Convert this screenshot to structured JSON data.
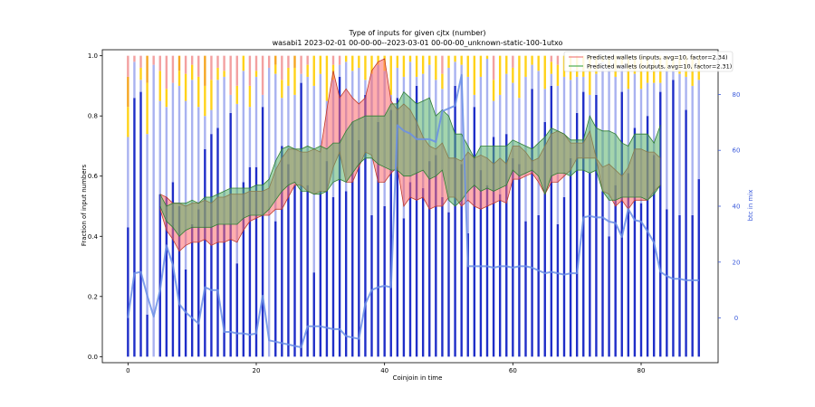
{
  "chart_data": {
    "type": "bar",
    "title": "Type of inputs for given cjtx (number)",
    "subtitle": "wasabi1 2023-02-01 00-00-00--2023-03-01 00-00-00_unknown-static-100-1utxo",
    "xlabel": "Coinjoin in time",
    "ylabel": "Fraction of input numbers",
    "ylabel_right": "btc in mix",
    "xlim": [
      -4,
      92
    ],
    "ylim": [
      -0.02,
      1.02
    ],
    "ylim_right": [
      -16,
      96
    ],
    "xticks": [
      0,
      20,
      40,
      60,
      80
    ],
    "xtick_labels": [
      "0",
      "20",
      "40",
      "60",
      "80"
    ],
    "yticks": [
      0.0,
      0.2,
      0.4,
      0.6,
      0.8,
      1.0
    ],
    "ytick_labels": [
      "0.0",
      "0.2",
      "0.4",
      "0.6",
      "0.8",
      "1.0"
    ],
    "yticks_right": [
      0,
      20,
      40,
      60,
      80
    ],
    "ytick_labels_right": [
      "0",
      "20",
      "40",
      "60",
      "80"
    ],
    "legend_position": "top-right",
    "legend": [
      {
        "label": "Predicted wallets (inputs, avg=10, factor=2.34)",
        "color": "#f08080"
      },
      {
        "label": "Predicted wallets (outputs, avg=10, factor=2.31)",
        "color": "#4caf50"
      }
    ],
    "colors": {
      "fresh": "#1f2ec8",
      "remix": "#a9b2f0",
      "yellow": "#ffd21a",
      "orange": "#f5a623",
      "pink": "#f3a0a0",
      "brown": "#a0642a",
      "btc_line": "#6b8fe6",
      "inputs_fill": "#ff6b6b",
      "inputs_line": "#c0392b",
      "outputs_fill": "#59b36a",
      "outputs_line": "#2e7d32"
    },
    "x": [
      0,
      1,
      2,
      3,
      4,
      5,
      6,
      7,
      8,
      9,
      10,
      11,
      12,
      13,
      14,
      15,
      16,
      17,
      18,
      19,
      20,
      21,
      22,
      23,
      24,
      25,
      26,
      27,
      28,
      29,
      30,
      31,
      32,
      33,
      34,
      35,
      36,
      37,
      38,
      39,
      40,
      41,
      42,
      43,
      44,
      45,
      46,
      47,
      48,
      49,
      50,
      51,
      52,
      53,
      54,
      55,
      56,
      57,
      58,
      59,
      60,
      61,
      62,
      63,
      64,
      65,
      66,
      67,
      68,
      69,
      70,
      71,
      72,
      73,
      74,
      75,
      76,
      77,
      78,
      79,
      80,
      81,
      82,
      83,
      84,
      85,
      86,
      87,
      88,
      89
    ],
    "series": [
      {
        "kind": "bar",
        "fresh_fraction": [
          0.43,
          0.86,
          0.88,
          0.14,
          0.0,
          0.54,
          0.53,
          0.58,
          0.5,
          0.29,
          0.44,
          0.49,
          0.69,
          0.74,
          0.76,
          0.44,
          0.81,
          0.31,
          0.58,
          0.63,
          0.63,
          0.83,
          0.0,
          0.45,
          0.7,
          0.64,
          0.57,
          0.91,
          0.57,
          0.28,
          0.55,
          0.65,
          0.53,
          0.93,
          0.55,
          0.78,
          0.72,
          0.87,
          0.47,
          0.78,
          0.5,
          0.82,
          0.86,
          0.46,
          0.58,
          0.9,
          0.56,
          0.65,
          0.67,
          0.53,
          0.48,
          0.9,
          0.64,
          0.41,
          0.83,
          0.62,
          0.57,
          0.73,
          0.54,
          0.74,
          0.66,
          0.64,
          0.45,
          0.89,
          0.47,
          0.78,
          0.9,
          0.44,
          0.53,
          0.66,
          0.81,
          0.88,
          0.61,
          0.87,
          0.55,
          0.4,
          0.57,
          0.88,
          0.61,
          0.76,
          0.51,
          0.8,
          0.67,
          0.88,
          0.49,
          0.92,
          0.47,
          0.82,
          0.47,
          0.59
        ],
        "remix_fraction": [
          0.3,
          0.12,
          0.04,
          0.6,
          0.97,
          0.31,
          0.3,
          0.33,
          0.4,
          0.56,
          0.48,
          0.34,
          0.11,
          0.08,
          0.16,
          0.49,
          0.06,
          0.53,
          0.37,
          0.2,
          0.3,
          0.04,
          0.96,
          0.49,
          0.16,
          0.26,
          0.3,
          0.03,
          0.36,
          0.62,
          0.39,
          0.2,
          0.39,
          0.04,
          0.43,
          0.17,
          0.24,
          0.05,
          0.47,
          0.19,
          0.45,
          0.05,
          0.1,
          0.47,
          0.4,
          0.03,
          0.38,
          0.32,
          0.25,
          0.36,
          0.48,
          0.08,
          0.33,
          0.52,
          0.04,
          0.31,
          0.42,
          0.12,
          0.33,
          0.2,
          0.25,
          0.22,
          0.48,
          0.08,
          0.48,
          0.11,
          0.04,
          0.46,
          0.4,
          0.26,
          0.12,
          0.05,
          0.26,
          0.07,
          0.43,
          0.56,
          0.36,
          0.09,
          0.28,
          0.18,
          0.38,
          0.11,
          0.24,
          0.03,
          0.46,
          0.03,
          0.47,
          0.11,
          0.43,
          0.33
        ],
        "yellow_fraction": [
          0.1,
          0.0,
          0.04,
          0.17,
          0.0,
          0.1,
          0.06,
          0.0,
          0.05,
          0.09,
          0.05,
          0.1,
          0.1,
          0.1,
          0.04,
          0.02,
          0.0,
          0.06,
          0.05,
          0.07,
          0.02,
          0.0,
          0.0,
          0.03,
          0.06,
          0.06,
          0.09,
          0.0,
          0.04,
          0.1,
          0.06,
          0.15,
          0.05,
          0.0,
          0.02,
          0.05,
          0.04,
          0.08,
          0.06,
          0.03,
          0.05,
          0.13,
          0.04,
          0.07,
          0.02,
          0.07,
          0.06,
          0.03,
          0.08,
          0.05,
          0.04,
          0.02,
          0.03,
          0.07,
          0.13,
          0.07,
          0.01,
          0.07,
          0.13,
          0.06,
          0.05,
          0.14,
          0.07,
          0.03,
          0.05,
          0.11,
          0.04,
          0.07,
          0.07,
          0.08,
          0.07,
          0.07,
          0.13,
          0.06,
          0.02,
          0.04,
          0.07,
          0.03,
          0.11,
          0.06,
          0.11,
          0.09,
          0.09,
          0.09,
          0.05,
          0.05,
          0.06,
          0.07,
          0.1,
          0.08
        ],
        "orange_fraction": [
          0.1,
          0.0,
          0.0,
          0.09,
          0.0,
          0.0,
          0.0,
          0.0,
          0.05,
          0.0,
          0.0,
          0.0,
          0.1,
          0.0,
          0.0,
          0.0,
          0.0,
          0.0,
          0.0,
          0.0,
          0.0,
          0.0,
          0.0,
          0.03,
          0.0,
          0.0,
          0.04,
          0.0,
          0.0,
          0.0,
          0.0,
          0.0,
          0.0,
          0.0,
          0.0,
          0.0,
          0.0,
          0.0,
          0.0,
          0.0,
          0.0,
          0.0,
          0.0,
          0.0,
          0.0,
          0.0,
          0.0,
          0.0,
          0.0,
          0.0,
          0.0,
          0.0,
          0.0,
          0.0,
          0.0,
          0.0,
          0.0,
          0.0,
          0.0,
          0.0,
          0.0,
          0.0,
          0.0,
          0.0,
          0.0,
          0.0,
          0.0,
          0.0,
          0.0,
          0.0,
          0.0,
          0.0,
          0.0,
          0.0,
          0.0,
          0.0,
          0.0,
          0.0,
          0.0,
          0.0,
          0.0,
          0.0,
          0.0,
          0.0,
          0.0,
          0.0,
          0.0,
          0.0,
          0.0,
          0.0
        ],
        "pink_fraction": [
          0.07,
          0.02,
          0.04,
          0.0,
          0.03,
          0.05,
          0.11,
          0.09,
          0.0,
          0.06,
          0.03,
          0.07,
          0.0,
          0.08,
          0.04,
          0.05,
          0.13,
          0.1,
          0.0,
          0.1,
          0.05,
          0.13,
          0.04,
          0.0,
          0.08,
          0.04,
          0.0,
          0.06,
          0.03,
          0.0,
          0.0,
          0.0,
          0.03,
          0.03,
          0.0,
          0.0,
          0.0,
          0.0,
          0.0,
          0.0,
          0.0,
          0.0,
          0.0,
          0.0,
          0.0,
          0.0,
          0.0,
          0.0,
          0.0,
          0.06,
          0.0,
          0.0,
          0.0,
          0.0,
          0.0,
          0.0,
          0.0,
          0.08,
          0.0,
          0.0,
          0.04,
          0.0,
          0.0,
          0.0,
          0.0,
          0.0,
          0.02,
          0.03,
          0.0,
          0.0,
          0.0,
          0.0,
          0.0,
          0.0,
          0.0,
          0.0,
          0.0,
          0.0,
          0.0,
          0.0,
          0.0,
          0.0,
          0.0,
          0.0,
          0.0,
          0.0,
          0.0,
          0.0,
          0.0,
          0.0
        ],
        "brown_fraction": [
          0.0,
          0.0,
          0.0,
          0.0,
          0.0,
          0.0,
          0.0,
          0.0,
          0.0,
          0.0,
          0.0,
          0.0,
          0.0,
          0.0,
          0.0,
          0.0,
          0.0,
          0.0,
          0.0,
          0.0,
          0.0,
          0.0,
          0.0,
          0.0,
          0.0,
          0.0,
          0.0,
          0.0,
          0.0,
          0.0,
          0.0,
          0.0,
          0.0,
          0.0,
          0.0,
          0.0,
          0.0,
          0.0,
          0.0,
          0.0,
          0.0,
          0.0,
          0.0,
          0.0,
          0.0,
          0.0,
          0.0,
          0.0,
          0.0,
          0.0,
          0.0,
          0.0,
          0.0,
          0.0,
          0.0,
          0.0,
          0.0,
          0.0,
          0.0,
          0.0,
          0.0,
          0.0,
          0.0,
          0.0,
          0.0,
          0.0,
          0.0,
          0.0,
          0.0,
          0.0,
          0.0,
          0.0,
          0.0,
          0.0,
          0.0,
          0.0,
          0.0,
          0.0,
          0.0,
          0.0,
          0.0,
          0.0,
          0.0,
          0.0,
          0.0,
          0.0,
          0.0,
          0.0,
          0.0,
          0.0
        ]
      },
      {
        "kind": "line",
        "axis": "right",
        "values": [
          0.0,
          16.0,
          16.5,
          8.0,
          0.5,
          10.0,
          26.0,
          19.0,
          5.0,
          2.0,
          0.0,
          -2.0,
          11.0,
          10.0,
          10.0,
          -5.0,
          -5.0,
          -5.5,
          -5.5,
          -6.0,
          -5.5,
          8.0,
          -8.0,
          -8.5,
          -9.0,
          -9.5,
          -10.0,
          -10.5,
          -3.0,
          -3.0,
          -3.0,
          -3.5,
          -4.0,
          -4.0,
          -6.5,
          -7.0,
          -7.5,
          5.0,
          10.0,
          11.0,
          11.5,
          11.0,
          69.0,
          67.0,
          66.0,
          64.0,
          64.0,
          64.0,
          63.0,
          74.0,
          75.0,
          76.0,
          87.0,
          18.5,
          18.5,
          18.5,
          18.5,
          18.0,
          18.5,
          18.5,
          18.0,
          18.5,
          18.5,
          18.0,
          17.0,
          16.0,
          16.5,
          16.0,
          15.5,
          16.0,
          16.0,
          36.0,
          36.5,
          36.0,
          36.0,
          34.5,
          34.0,
          29.0,
          39.0,
          35.0,
          34.5,
          31.0,
          27.0,
          16.5,
          15.0,
          14.0,
          14.0,
          13.5,
          13.5,
          13.5
        ]
      },
      {
        "kind": "band",
        "name": "Predicted wallets (inputs, avg=10, factor=2.34)",
        "upper": [
          null,
          null,
          null,
          null,
          null,
          0.54,
          0.53,
          0.51,
          0.51,
          0.5,
          0.51,
          0.51,
          0.52,
          0.51,
          0.53,
          0.53,
          0.54,
          0.54,
          0.54,
          0.55,
          0.55,
          0.55,
          0.56,
          0.62,
          0.66,
          0.69,
          0.69,
          0.68,
          0.68,
          0.69,
          0.68,
          0.82,
          0.95,
          0.86,
          0.89,
          0.86,
          0.84,
          0.86,
          0.95,
          0.98,
          0.99,
          0.85,
          0.82,
          0.84,
          0.82,
          0.78,
          0.73,
          0.7,
          0.69,
          0.71,
          0.66,
          0.66,
          0.65,
          0.68,
          0.66,
          0.67,
          0.66,
          0.64,
          0.66,
          0.64,
          0.7,
          0.7,
          0.68,
          0.65,
          0.66,
          0.7,
          0.74,
          0.75,
          0.74,
          0.71,
          0.71,
          0.71,
          0.75,
          0.66,
          0.63,
          0.64,
          0.62,
          0.6,
          0.63,
          0.69,
          0.69,
          0.68,
          0.68,
          0.66,
          null,
          null,
          null,
          null,
          null,
          null
        ],
        "lower": [
          null,
          null,
          null,
          null,
          null,
          0.49,
          0.42,
          0.39,
          0.35,
          0.37,
          0.38,
          0.38,
          0.39,
          0.37,
          0.38,
          0.38,
          0.39,
          0.38,
          0.42,
          0.45,
          0.46,
          0.47,
          0.47,
          0.49,
          0.49,
          0.53,
          0.57,
          0.57,
          0.55,
          0.54,
          0.55,
          0.55,
          0.63,
          0.68,
          0.58,
          0.58,
          0.63,
          0.68,
          0.67,
          0.58,
          0.58,
          0.61,
          0.63,
          0.5,
          0.53,
          0.52,
          0.53,
          0.49,
          0.5,
          0.5,
          0.53,
          0.53,
          0.5,
          0.52,
          0.5,
          0.49,
          0.5,
          0.51,
          0.52,
          0.51,
          0.59,
          0.59,
          0.6,
          0.61,
          0.58,
          0.54,
          0.58,
          0.58,
          0.6,
          0.62,
          0.66,
          0.66,
          0.66,
          0.66,
          0.55,
          0.54,
          0.5,
          0.52,
          0.49,
          0.52,
          0.52,
          0.52,
          0.55,
          0.57,
          null,
          null,
          null,
          null,
          null,
          null
        ]
      },
      {
        "kind": "band",
        "name": "Predicted wallets (outputs, avg=10, factor=2.31)",
        "upper": [
          null,
          null,
          null,
          null,
          null,
          0.54,
          0.5,
          0.51,
          0.51,
          0.51,
          0.52,
          0.51,
          0.53,
          0.53,
          0.54,
          0.55,
          0.56,
          0.56,
          0.56,
          0.56,
          0.57,
          0.57,
          0.59,
          0.65,
          0.69,
          0.7,
          0.69,
          0.69,
          0.7,
          0.69,
          0.7,
          0.69,
          0.71,
          0.71,
          0.75,
          0.78,
          0.79,
          0.8,
          0.8,
          0.8,
          0.8,
          0.84,
          0.84,
          0.88,
          0.86,
          0.84,
          0.85,
          0.86,
          0.8,
          0.82,
          0.8,
          0.74,
          0.74,
          0.7,
          0.66,
          0.7,
          0.7,
          0.7,
          0.7,
          0.7,
          0.72,
          0.71,
          0.7,
          0.69,
          0.71,
          0.73,
          0.76,
          0.75,
          0.74,
          0.72,
          0.72,
          0.72,
          0.8,
          0.76,
          0.75,
          0.75,
          0.74,
          0.71,
          0.7,
          0.74,
          0.74,
          0.74,
          0.71,
          0.77,
          null,
          null,
          null,
          null,
          null,
          null
        ],
        "lower": [
          null,
          null,
          null,
          null,
          null,
          0.5,
          0.45,
          0.43,
          0.4,
          0.42,
          0.43,
          0.43,
          0.43,
          0.43,
          0.44,
          0.44,
          0.44,
          0.44,
          0.46,
          0.47,
          0.47,
          0.47,
          0.49,
          0.52,
          0.55,
          0.57,
          0.58,
          0.55,
          0.55,
          0.54,
          0.54,
          0.55,
          0.58,
          0.59,
          0.58,
          0.61,
          0.64,
          0.66,
          0.66,
          0.64,
          0.63,
          0.62,
          0.62,
          0.6,
          0.6,
          0.61,
          0.62,
          0.59,
          0.6,
          0.62,
          0.52,
          0.5,
          0.52,
          0.55,
          0.57,
          0.55,
          0.56,
          0.55,
          0.56,
          0.57,
          0.62,
          0.6,
          0.61,
          0.62,
          0.6,
          0.54,
          0.6,
          0.61,
          0.61,
          0.6,
          0.62,
          0.62,
          0.61,
          0.62,
          0.55,
          0.52,
          0.52,
          0.53,
          0.53,
          0.53,
          0.53,
          0.52,
          0.54,
          0.57,
          null,
          null,
          null,
          null,
          null,
          null
        ]
      }
    ]
  }
}
